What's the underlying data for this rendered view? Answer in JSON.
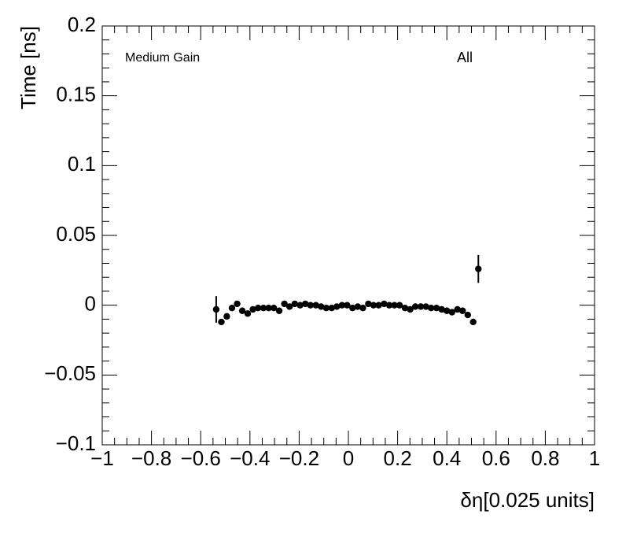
{
  "chart_data": {
    "type": "scatter",
    "x_label": "δη[0.025 units]",
    "y_label": "Time [ns]",
    "annotations": [
      "Medium Gain",
      "All"
    ],
    "color": "#000000",
    "x": [
      -0.537,
      -0.516,
      -0.494,
      -0.473,
      -0.452,
      -0.431,
      -0.409,
      -0.388,
      -0.367,
      -0.345,
      -0.324,
      -0.303,
      -0.281,
      -0.26,
      -0.239,
      -0.218,
      -0.196,
      -0.175,
      -0.154,
      -0.132,
      -0.111,
      -0.09,
      -0.068,
      -0.047,
      -0.026,
      -0.005,
      0.017,
      0.038,
      0.059,
      0.081,
      0.102,
      0.123,
      0.145,
      0.166,
      0.187,
      0.208,
      0.23,
      0.251,
      0.272,
      0.294,
      0.315,
      0.336,
      0.358,
      0.379,
      0.4,
      0.421,
      0.443,
      0.464,
      0.485,
      0.507,
      0.528
    ],
    "values": [
      -0.003,
      -0.012,
      -0.008,
      -0.002,
      0.001,
      -0.004,
      -0.006,
      -0.003,
      -0.002,
      -0.002,
      -0.002,
      -0.002,
      -0.004,
      0.001,
      -0.001,
      0.001,
      0,
      0.001,
      0,
      0,
      -0.001,
      -0.002,
      -0.002,
      -0.001,
      0,
      0,
      -0.002,
      -0.001,
      -0.002,
      0.001,
      0,
      0,
      0.001,
      0,
      0,
      0,
      -0.002,
      -0.003,
      -0.001,
      -0.001,
      -0.001,
      -0.002,
      -0.002,
      -0.003,
      -0.004,
      -0.005,
      -0.003,
      -0.004,
      -0.007,
      -0.012,
      0.026
    ],
    "errors": [
      0.0095,
      0.001,
      0.001,
      0.001,
      0.001,
      0.001,
      0.001,
      0.001,
      0.001,
      0.001,
      0.001,
      0.001,
      0.001,
      0.001,
      0.001,
      0.001,
      0.001,
      0.001,
      0.001,
      0.001,
      0.001,
      0.001,
      0.001,
      0.001,
      0.001,
      0.001,
      0.001,
      0.001,
      0.001,
      0.001,
      0.001,
      0.001,
      0.001,
      0.001,
      0.001,
      0.001,
      0.001,
      0.001,
      0.001,
      0.001,
      0.001,
      0.001,
      0.001,
      0.001,
      0.001,
      0.001,
      0.001,
      0.001,
      0.001,
      0.001,
      0.01
    ],
    "xlim": [
      -1,
      1
    ],
    "xticks": [
      {
        "value": -1,
        "label": "−1"
      },
      {
        "value": -0.8,
        "label": "−0.8"
      },
      {
        "value": -0.6,
        "label": "−0.6"
      },
      {
        "value": -0.4,
        "label": "−0.4"
      },
      {
        "value": -0.2,
        "label": "−0.2"
      },
      0,
      0.2,
      0.4,
      0.6,
      0.8,
      1
    ],
    "ylim": [
      -0.1,
      0.2
    ],
    "yticks": [
      {
        "value": -0.1,
        "label": "−0.1"
      },
      {
        "value": -0.05,
        "label": "−0.05"
      },
      0,
      0.05,
      0.1,
      0.15,
      0.2
    ],
    "grid": false
  }
}
